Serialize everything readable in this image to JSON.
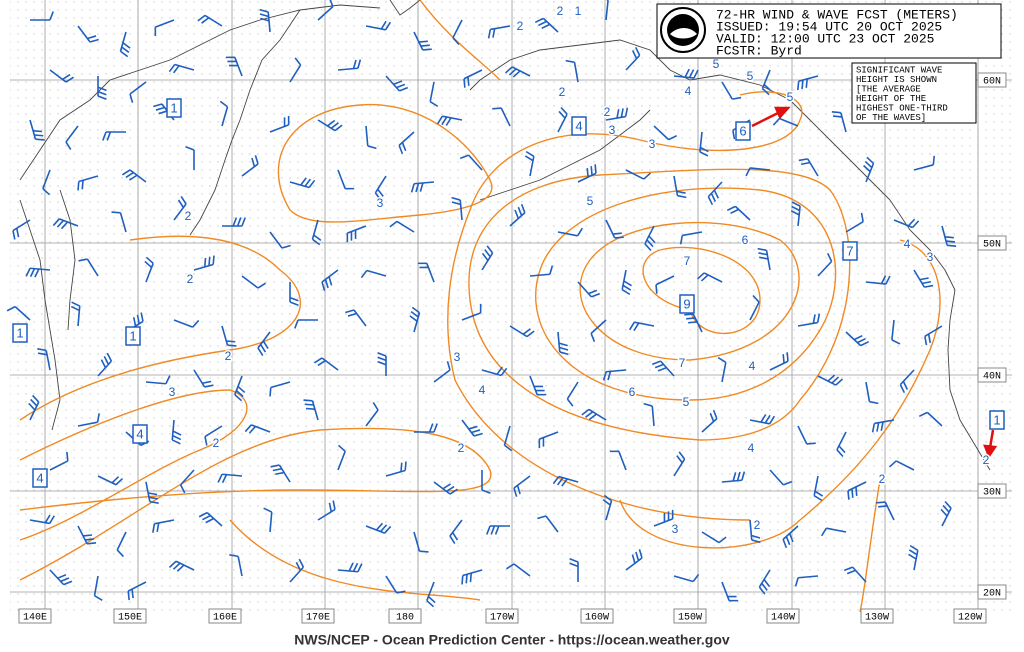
{
  "header": {
    "lines": [
      "72-HR WIND & WAVE FCST (METERS)",
      "ISSUED: 19:54 UTC 20 OCT 2025",
      "VALID: 12:00 UTC 23 OCT 2025",
      "FCSTR: Byrd"
    ]
  },
  "note": {
    "lines": [
      "SIGNIFICANT WAVE",
      "HEIGHT IS SHOWN",
      "[THE AVERAGE",
      "HEIGHT OF THE",
      "HIGHEST ONE-THIRD",
      "OF THE WAVES]"
    ]
  },
  "longitude_labels": [
    "140E",
    "150E",
    "160E",
    "170E",
    "180",
    "170W",
    "160W",
    "150W",
    "140W",
    "130W",
    "120W"
  ],
  "latitude_labels": [
    "60N",
    "50N",
    "40N",
    "30N",
    "20N"
  ],
  "boxed_values": [
    1,
    1,
    1,
    4,
    6,
    7,
    9,
    4,
    4,
    1
  ],
  "contour_labels": [
    2,
    1,
    2,
    2,
    2,
    3,
    3,
    4,
    5,
    5,
    5,
    2,
    3,
    2,
    5,
    6,
    4,
    3,
    7,
    2,
    3,
    7,
    4,
    3,
    4,
    6,
    5,
    2,
    2,
    4,
    2,
    2,
    3,
    2
  ],
  "footer": "NWS/NCEP - Ocean Prediction Center - https://ocean.weather.gov"
}
